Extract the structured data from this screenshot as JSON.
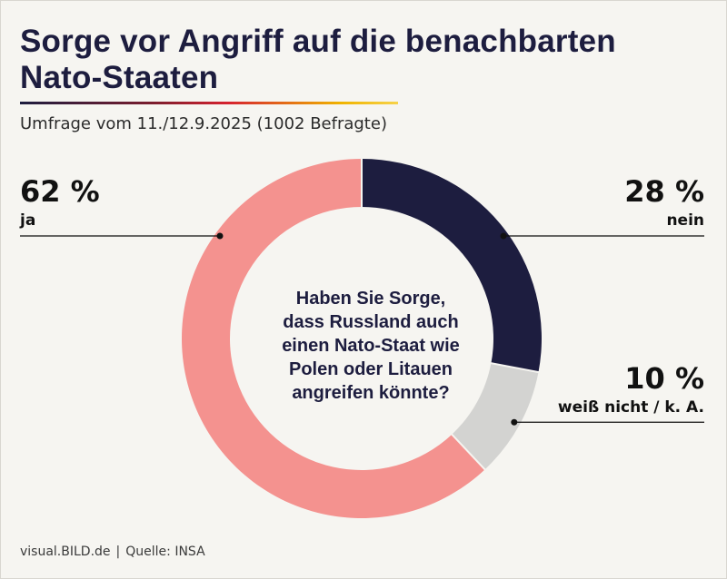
{
  "header": {
    "title_line1": "Sorge vor Angriff auf die benachbarten",
    "title_line2": "Nato-Staaten",
    "subtitle": "Umfrage vom 11./12.9.2025 (1002 Befragte)"
  },
  "footer": {
    "source_site": "visual.BILD.de",
    "separator": "|",
    "source": "Quelle: INSA"
  },
  "chart_data": {
    "type": "pie",
    "donut": true,
    "center_text_lines": [
      "Haben Sie Sorge,",
      "dass Russland auch",
      "einen Nato-Staat wie",
      "Polen oder Litauen",
      "angreifen könnte?"
    ],
    "slices": [
      {
        "label": "nein",
        "value": 28,
        "value_text": "28 %",
        "color": "#1d1d3f"
      },
      {
        "label": "weiß nicht / k. A.",
        "value": 10,
        "value_text": "10 %",
        "color": "#d3d3d1"
      },
      {
        "label": "ja",
        "value": 62,
        "value_text": "62 %",
        "color": "#f4928f"
      }
    ]
  },
  "colors": {
    "title": "#1d1d3f",
    "background": "#f6f5f1"
  }
}
